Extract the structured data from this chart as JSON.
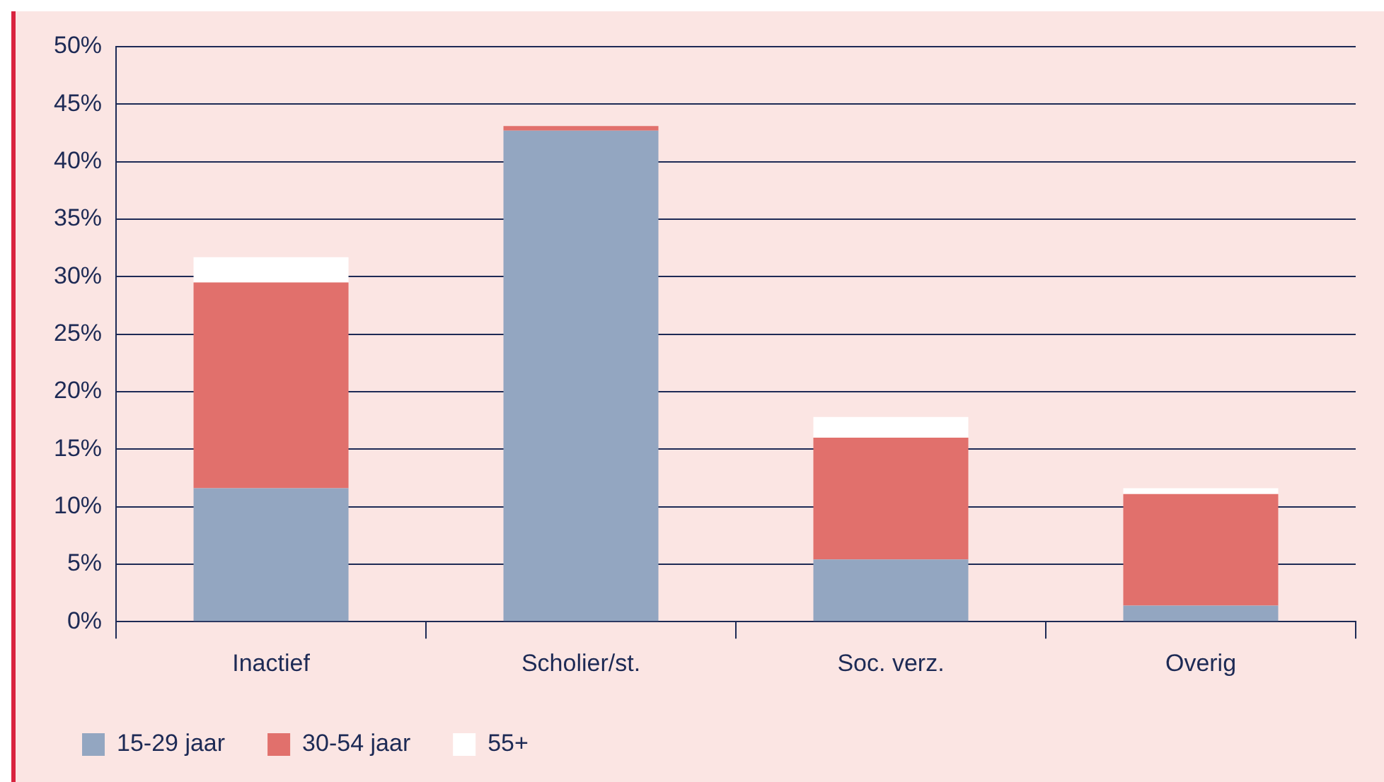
{
  "chart_data": {
    "type": "bar",
    "stacked": true,
    "categories": [
      "Inactief",
      "Scholier/st.",
      "Soc. verz.",
      "Overig"
    ],
    "series": [
      {
        "name": "15-29 jaar",
        "color": "#93a6c1",
        "values": [
          11.6,
          42.7,
          5.4,
          1.4
        ]
      },
      {
        "name": "30-54 jaar",
        "color": "#e1706c",
        "values": [
          17.9,
          0.4,
          10.6,
          9.7
        ]
      },
      {
        "name": "55+",
        "color": "#ffffff",
        "values": [
          2.2,
          0,
          1.8,
          0.5
        ]
      }
    ],
    "ylim": [
      0,
      50
    ],
    "yticks": [
      {
        "value": 0,
        "label": "0%"
      },
      {
        "value": 5,
        "label": "5%"
      },
      {
        "value": 10,
        "label": "10%"
      },
      {
        "value": 15,
        "label": "15%"
      },
      {
        "value": 20,
        "label": "20%"
      },
      {
        "value": 25,
        "label": "25%"
      },
      {
        "value": 30,
        "label": "30%"
      },
      {
        "value": 35,
        "label": "35%"
      },
      {
        "value": 40,
        "label": "40%"
      },
      {
        "value": 45,
        "label": "45%"
      },
      {
        "value": 50,
        "label": "50%"
      }
    ],
    "grid": "y",
    "legend": "bottom left"
  }
}
